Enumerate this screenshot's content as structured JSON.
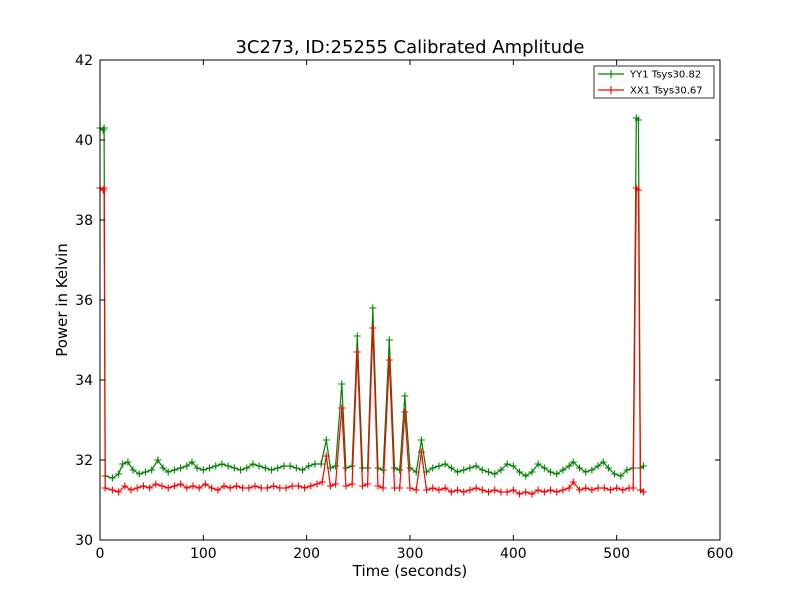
{
  "chart_data": {
    "type": "line",
    "title": "3C273, ID:25255 Calibrated Amplitude",
    "xlabel": "Time (seconds)",
    "ylabel": "Power in Kelvin",
    "xlim": [
      0,
      600
    ],
    "ylim": [
      30,
      42
    ],
    "xticks": [
      0,
      100,
      200,
      300,
      400,
      500,
      600
    ],
    "yticks": [
      30,
      32,
      34,
      36,
      38,
      40,
      42
    ],
    "grid": false,
    "legend_position": "top-right",
    "marker": "plus",
    "series": [
      {
        "name": "YY1 Tsys30.82",
        "color": "#008000",
        "points": [
          [
            0,
            40.3
          ],
          [
            3,
            40.25
          ],
          [
            4,
            40.3
          ],
          [
            5,
            31.6
          ],
          [
            12,
            31.55
          ],
          [
            18,
            31.65
          ],
          [
            22,
            31.9
          ],
          [
            27,
            31.95
          ],
          [
            32,
            31.75
          ],
          [
            38,
            31.65
          ],
          [
            44,
            31.7
          ],
          [
            50,
            31.75
          ],
          [
            56,
            32.0
          ],
          [
            61,
            31.8
          ],
          [
            66,
            31.7
          ],
          [
            72,
            31.75
          ],
          [
            78,
            31.8
          ],
          [
            84,
            31.85
          ],
          [
            89,
            31.95
          ],
          [
            94,
            31.8
          ],
          [
            100,
            31.75
          ],
          [
            106,
            31.8
          ],
          [
            112,
            31.85
          ],
          [
            118,
            31.9
          ],
          [
            124,
            31.85
          ],
          [
            130,
            31.8
          ],
          [
            136,
            31.75
          ],
          [
            142,
            31.8
          ],
          [
            148,
            31.9
          ],
          [
            154,
            31.85
          ],
          [
            160,
            31.8
          ],
          [
            166,
            31.75
          ],
          [
            172,
            31.8
          ],
          [
            178,
            31.85
          ],
          [
            184,
            31.85
          ],
          [
            190,
            31.8
          ],
          [
            196,
            31.75
          ],
          [
            202,
            31.85
          ],
          [
            208,
            31.9
          ],
          [
            214,
            31.9
          ],
          [
            219,
            32.5
          ],
          [
            223,
            31.8
          ],
          [
            228,
            31.85
          ],
          [
            234,
            33.9
          ],
          [
            238,
            31.8
          ],
          [
            244,
            31.85
          ],
          [
            249,
            35.1
          ],
          [
            254,
            31.8
          ],
          [
            259,
            31.8
          ],
          [
            264,
            35.8
          ],
          [
            269,
            31.8
          ],
          [
            274,
            31.75
          ],
          [
            280,
            35.0
          ],
          [
            285,
            31.8
          ],
          [
            290,
            31.75
          ],
          [
            295,
            33.6
          ],
          [
            300,
            31.8
          ],
          [
            306,
            31.7
          ],
          [
            311,
            32.5
          ],
          [
            316,
            31.7
          ],
          [
            322,
            31.8
          ],
          [
            328,
            31.85
          ],
          [
            334,
            31.9
          ],
          [
            340,
            31.8
          ],
          [
            346,
            31.7
          ],
          [
            352,
            31.75
          ],
          [
            358,
            31.8
          ],
          [
            364,
            31.85
          ],
          [
            370,
            31.75
          ],
          [
            376,
            31.7
          ],
          [
            382,
            31.65
          ],
          [
            388,
            31.75
          ],
          [
            394,
            31.9
          ],
          [
            400,
            31.85
          ],
          [
            406,
            31.7
          ],
          [
            412,
            31.6
          ],
          [
            418,
            31.7
          ],
          [
            424,
            31.9
          ],
          [
            430,
            31.8
          ],
          [
            436,
            31.7
          ],
          [
            442,
            31.65
          ],
          [
            448,
            31.75
          ],
          [
            454,
            31.85
          ],
          [
            458,
            31.95
          ],
          [
            464,
            31.8
          ],
          [
            470,
            31.7
          ],
          [
            476,
            31.75
          ],
          [
            482,
            31.85
          ],
          [
            487,
            31.95
          ],
          [
            492,
            31.8
          ],
          [
            498,
            31.65
          ],
          [
            504,
            31.6
          ],
          [
            510,
            31.75
          ],
          [
            516,
            31.8
          ],
          [
            519,
            40.55
          ],
          [
            521,
            40.5
          ],
          [
            523,
            31.8
          ],
          [
            526,
            31.85
          ]
        ]
      },
      {
        "name": "XX1 Tsys30.67",
        "color": "#ff0000",
        "points": [
          [
            0,
            38.8
          ],
          [
            3,
            38.75
          ],
          [
            4,
            38.8
          ],
          [
            5,
            31.3
          ],
          [
            12,
            31.25
          ],
          [
            18,
            31.2
          ],
          [
            24,
            31.35
          ],
          [
            30,
            31.25
          ],
          [
            36,
            31.3
          ],
          [
            42,
            31.35
          ],
          [
            48,
            31.3
          ],
          [
            54,
            31.4
          ],
          [
            60,
            31.35
          ],
          [
            66,
            31.3
          ],
          [
            72,
            31.35
          ],
          [
            78,
            31.4
          ],
          [
            84,
            31.3
          ],
          [
            90,
            31.35
          ],
          [
            96,
            31.3
          ],
          [
            102,
            31.4
          ],
          [
            108,
            31.3
          ],
          [
            114,
            31.25
          ],
          [
            120,
            31.35
          ],
          [
            126,
            31.3
          ],
          [
            132,
            31.35
          ],
          [
            138,
            31.3
          ],
          [
            144,
            31.3
          ],
          [
            150,
            31.35
          ],
          [
            156,
            31.3
          ],
          [
            162,
            31.3
          ],
          [
            168,
            31.35
          ],
          [
            174,
            31.3
          ],
          [
            180,
            31.3
          ],
          [
            186,
            31.35
          ],
          [
            192,
            31.35
          ],
          [
            198,
            31.3
          ],
          [
            204,
            31.35
          ],
          [
            210,
            31.4
          ],
          [
            215,
            31.45
          ],
          [
            219,
            32.1
          ],
          [
            223,
            31.35
          ],
          [
            228,
            31.4
          ],
          [
            234,
            33.3
          ],
          [
            238,
            31.35
          ],
          [
            244,
            31.4
          ],
          [
            249,
            34.7
          ],
          [
            254,
            31.35
          ],
          [
            259,
            31.4
          ],
          [
            264,
            35.3
          ],
          [
            269,
            31.35
          ],
          [
            274,
            31.3
          ],
          [
            280,
            34.5
          ],
          [
            285,
            31.3
          ],
          [
            290,
            31.3
          ],
          [
            295,
            33.2
          ],
          [
            300,
            31.3
          ],
          [
            306,
            31.25
          ],
          [
            311,
            32.2
          ],
          [
            316,
            31.25
          ],
          [
            322,
            31.3
          ],
          [
            328,
            31.25
          ],
          [
            334,
            31.3
          ],
          [
            340,
            31.2
          ],
          [
            346,
            31.25
          ],
          [
            352,
            31.2
          ],
          [
            358,
            31.25
          ],
          [
            364,
            31.3
          ],
          [
            370,
            31.25
          ],
          [
            376,
            31.2
          ],
          [
            382,
            31.25
          ],
          [
            388,
            31.2
          ],
          [
            394,
            31.2
          ],
          [
            400,
            31.25
          ],
          [
            406,
            31.15
          ],
          [
            412,
            31.2
          ],
          [
            418,
            31.15
          ],
          [
            424,
            31.25
          ],
          [
            430,
            31.2
          ],
          [
            436,
            31.25
          ],
          [
            442,
            31.2
          ],
          [
            448,
            31.25
          ],
          [
            454,
            31.3
          ],
          [
            458,
            31.45
          ],
          [
            464,
            31.25
          ],
          [
            470,
            31.3
          ],
          [
            476,
            31.25
          ],
          [
            482,
            31.3
          ],
          [
            488,
            31.3
          ],
          [
            494,
            31.25
          ],
          [
            500,
            31.3
          ],
          [
            506,
            31.25
          ],
          [
            512,
            31.3
          ],
          [
            516,
            31.3
          ],
          [
            519,
            38.8
          ],
          [
            521,
            38.75
          ],
          [
            523,
            31.25
          ],
          [
            526,
            31.2
          ]
        ]
      }
    ]
  }
}
